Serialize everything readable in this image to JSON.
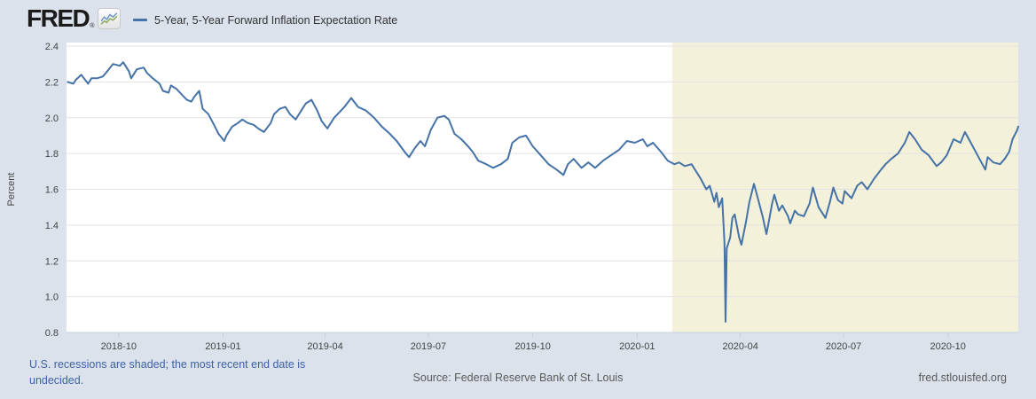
{
  "header": {
    "brand": "FRED",
    "registered_mark": "®",
    "legend": {
      "label": "5-Year, 5-Year Forward Inflation Expectation Rate"
    }
  },
  "footer": {
    "recession_note": "U.S. recessions are shaded; the most recent end date is undecided.",
    "source": "Source: Federal Reserve Bank of St. Louis",
    "site": "fred.stlouisfed.org"
  },
  "colors": {
    "page_background": "#dbe2ec",
    "plot_background": "#ffffff",
    "recession_shading": "#f3f1da",
    "gridline": "#e2e2e2",
    "axis_line": "#c5cfdd",
    "axis_text": "#444444",
    "series_line": "#4572a7",
    "note_link": "#3d62a5",
    "muted_text": "#5a5a5a",
    "logo_icon_blue": "#6b93c4",
    "logo_icon_green": "#86a757"
  },
  "chart_data": {
    "type": "line",
    "title": "5-Year, 5-Year Forward Inflation Expectation Rate",
    "ylabel": "Percent",
    "ylim": [
      0.8,
      2.4
    ],
    "y_ticks": [
      0.8,
      1.0,
      1.2,
      1.4,
      1.6,
      1.8,
      2.0,
      2.2,
      2.4
    ],
    "x_ticks": [
      {
        "label": "2018-10",
        "date": "2018-10-01"
      },
      {
        "label": "2019-01",
        "date": "2019-01-01"
      },
      {
        "label": "2019-04",
        "date": "2019-04-01"
      },
      {
        "label": "2019-07",
        "date": "2019-07-01"
      },
      {
        "label": "2019-10",
        "date": "2019-10-01"
      },
      {
        "label": "2020-01",
        "date": "2020-01-01"
      },
      {
        "label": "2020-04",
        "date": "2020-04-01"
      },
      {
        "label": "2020-07",
        "date": "2020-07-01"
      },
      {
        "label": "2020-10",
        "date": "2020-10-01"
      }
    ],
    "x_range": [
      "2018-08-16",
      "2020-12-02"
    ],
    "grid": true,
    "legend_position": "top",
    "recession_shading": {
      "start": "2020-02-01",
      "end": "2020-12-02"
    },
    "series": [
      {
        "name": "5-Year, 5-Year Forward Inflation Expectation Rate",
        "color": "#4572a7",
        "points": [
          [
            "2018-08-17",
            2.2
          ],
          [
            "2018-08-22",
            2.19
          ],
          [
            "2018-08-24",
            2.21
          ],
          [
            "2018-08-29",
            2.24
          ],
          [
            "2018-09-04",
            2.19
          ],
          [
            "2018-09-07",
            2.22
          ],
          [
            "2018-09-12",
            2.22
          ],
          [
            "2018-09-17",
            2.23
          ],
          [
            "2018-09-21",
            2.26
          ],
          [
            "2018-09-26",
            2.3
          ],
          [
            "2018-10-02",
            2.29
          ],
          [
            "2018-10-05",
            2.31
          ],
          [
            "2018-10-10",
            2.26
          ],
          [
            "2018-10-12",
            2.22
          ],
          [
            "2018-10-17",
            2.27
          ],
          [
            "2018-10-23",
            2.28
          ],
          [
            "2018-10-26",
            2.25
          ],
          [
            "2018-10-31",
            2.22
          ],
          [
            "2018-11-06",
            2.19
          ],
          [
            "2018-11-09",
            2.15
          ],
          [
            "2018-11-14",
            2.14
          ],
          [
            "2018-11-16",
            2.18
          ],
          [
            "2018-11-21",
            2.16
          ],
          [
            "2018-11-27",
            2.12
          ],
          [
            "2018-11-30",
            2.1
          ],
          [
            "2018-12-04",
            2.09
          ],
          [
            "2018-12-07",
            2.12
          ],
          [
            "2018-12-11",
            2.15
          ],
          [
            "2018-12-14",
            2.05
          ],
          [
            "2018-12-19",
            2.02
          ],
          [
            "2018-12-24",
            1.96
          ],
          [
            "2018-12-28",
            1.91
          ],
          [
            "2019-01-02",
            1.87
          ],
          [
            "2019-01-04",
            1.9
          ],
          [
            "2019-01-09",
            1.95
          ],
          [
            "2019-01-14",
            1.97
          ],
          [
            "2019-01-18",
            1.99
          ],
          [
            "2019-01-23",
            1.97
          ],
          [
            "2019-01-28",
            1.96
          ],
          [
            "2019-02-01",
            1.94
          ],
          [
            "2019-02-06",
            1.92
          ],
          [
            "2019-02-12",
            1.97
          ],
          [
            "2019-02-15",
            2.02
          ],
          [
            "2019-02-20",
            2.05
          ],
          [
            "2019-02-25",
            2.06
          ],
          [
            "2019-03-01",
            2.02
          ],
          [
            "2019-03-06",
            1.99
          ],
          [
            "2019-03-11",
            2.04
          ],
          [
            "2019-03-15",
            2.08
          ],
          [
            "2019-03-20",
            2.1
          ],
          [
            "2019-03-25",
            2.04
          ],
          [
            "2019-03-29",
            1.98
          ],
          [
            "2019-04-03",
            1.94
          ],
          [
            "2019-04-09",
            2.0
          ],
          [
            "2019-04-15",
            2.04
          ],
          [
            "2019-04-18",
            2.06
          ],
          [
            "2019-04-24",
            2.11
          ],
          [
            "2019-04-30",
            2.06
          ],
          [
            "2019-05-07",
            2.04
          ],
          [
            "2019-05-14",
            2.0
          ],
          [
            "2019-05-21",
            1.95
          ],
          [
            "2019-05-28",
            1.91
          ],
          [
            "2019-06-03",
            1.87
          ],
          [
            "2019-06-10",
            1.81
          ],
          [
            "2019-06-14",
            1.78
          ],
          [
            "2019-06-19",
            1.83
          ],
          [
            "2019-06-24",
            1.87
          ],
          [
            "2019-06-28",
            1.84
          ],
          [
            "2019-07-03",
            1.93
          ],
          [
            "2019-07-09",
            2.0
          ],
          [
            "2019-07-15",
            2.01
          ],
          [
            "2019-07-19",
            1.99
          ],
          [
            "2019-07-24",
            1.91
          ],
          [
            "2019-07-30",
            1.88
          ],
          [
            "2019-08-05",
            1.84
          ],
          [
            "2019-08-09",
            1.81
          ],
          [
            "2019-08-14",
            1.76
          ],
          [
            "2019-08-21",
            1.74
          ],
          [
            "2019-08-27",
            1.72
          ],
          [
            "2019-09-03",
            1.74
          ],
          [
            "2019-09-09",
            1.77
          ],
          [
            "2019-09-13",
            1.86
          ],
          [
            "2019-09-19",
            1.89
          ],
          [
            "2019-09-25",
            1.9
          ],
          [
            "2019-10-01",
            1.84
          ],
          [
            "2019-10-08",
            1.79
          ],
          [
            "2019-10-15",
            1.74
          ],
          [
            "2019-10-22",
            1.71
          ],
          [
            "2019-10-28",
            1.68
          ],
          [
            "2019-11-01",
            1.74
          ],
          [
            "2019-11-06",
            1.77
          ],
          [
            "2019-11-13",
            1.72
          ],
          [
            "2019-11-19",
            1.75
          ],
          [
            "2019-11-25",
            1.72
          ],
          [
            "2019-12-02",
            1.76
          ],
          [
            "2019-12-09",
            1.79
          ],
          [
            "2019-12-16",
            1.82
          ],
          [
            "2019-12-23",
            1.87
          ],
          [
            "2019-12-30",
            1.86
          ],
          [
            "2020-01-06",
            1.88
          ],
          [
            "2020-01-10",
            1.84
          ],
          [
            "2020-01-15",
            1.86
          ],
          [
            "2020-01-22",
            1.81
          ],
          [
            "2020-01-28",
            1.76
          ],
          [
            "2020-02-03",
            1.74
          ],
          [
            "2020-02-07",
            1.75
          ],
          [
            "2020-02-12",
            1.73
          ],
          [
            "2020-02-18",
            1.74
          ],
          [
            "2020-02-21",
            1.71
          ],
          [
            "2020-02-26",
            1.66
          ],
          [
            "2020-03-02",
            1.6
          ],
          [
            "2020-03-05",
            1.62
          ],
          [
            "2020-03-09",
            1.53
          ],
          [
            "2020-03-11",
            1.58
          ],
          [
            "2020-03-13",
            1.5
          ],
          [
            "2020-03-16",
            1.55
          ],
          [
            "2020-03-18",
            1.3
          ],
          [
            "2020-03-19",
            0.86
          ],
          [
            "2020-03-20",
            1.27
          ],
          [
            "2020-03-23",
            1.33
          ],
          [
            "2020-03-25",
            1.44
          ],
          [
            "2020-03-27",
            1.46
          ],
          [
            "2020-03-31",
            1.33
          ],
          [
            "2020-04-02",
            1.29
          ],
          [
            "2020-04-06",
            1.42
          ],
          [
            "2020-04-09",
            1.53
          ],
          [
            "2020-04-13",
            1.63
          ],
          [
            "2020-04-16",
            1.56
          ],
          [
            "2020-04-21",
            1.44
          ],
          [
            "2020-04-24",
            1.35
          ],
          [
            "2020-04-27",
            1.45
          ],
          [
            "2020-04-29",
            1.52
          ],
          [
            "2020-05-01",
            1.57
          ],
          [
            "2020-05-05",
            1.48
          ],
          [
            "2020-05-08",
            1.51
          ],
          [
            "2020-05-13",
            1.45
          ],
          [
            "2020-05-15",
            1.41
          ],
          [
            "2020-05-19",
            1.48
          ],
          [
            "2020-05-22",
            1.46
          ],
          [
            "2020-05-27",
            1.45
          ],
          [
            "2020-06-01",
            1.52
          ],
          [
            "2020-06-04",
            1.61
          ],
          [
            "2020-06-09",
            1.5
          ],
          [
            "2020-06-15",
            1.44
          ],
          [
            "2020-06-19",
            1.53
          ],
          [
            "2020-06-22",
            1.61
          ],
          [
            "2020-06-26",
            1.54
          ],
          [
            "2020-06-30",
            1.52
          ],
          [
            "2020-07-02",
            1.59
          ],
          [
            "2020-07-08",
            1.55
          ],
          [
            "2020-07-13",
            1.62
          ],
          [
            "2020-07-17",
            1.64
          ],
          [
            "2020-07-22",
            1.6
          ],
          [
            "2020-07-28",
            1.66
          ],
          [
            "2020-08-03",
            1.71
          ],
          [
            "2020-08-07",
            1.74
          ],
          [
            "2020-08-12",
            1.77
          ],
          [
            "2020-08-18",
            1.8
          ],
          [
            "2020-08-24",
            1.86
          ],
          [
            "2020-08-28",
            1.92
          ],
          [
            "2020-09-02",
            1.88
          ],
          [
            "2020-09-08",
            1.82
          ],
          [
            "2020-09-14",
            1.79
          ],
          [
            "2020-09-21",
            1.73
          ],
          [
            "2020-09-25",
            1.75
          ],
          [
            "2020-09-30",
            1.79
          ],
          [
            "2020-10-06",
            1.88
          ],
          [
            "2020-10-12",
            1.86
          ],
          [
            "2020-10-16",
            1.92
          ],
          [
            "2020-10-22",
            1.85
          ],
          [
            "2020-10-28",
            1.78
          ],
          [
            "2020-11-03",
            1.71
          ],
          [
            "2020-11-05",
            1.78
          ],
          [
            "2020-11-10",
            1.75
          ],
          [
            "2020-11-16",
            1.74
          ],
          [
            "2020-11-20",
            1.77
          ],
          [
            "2020-11-24",
            1.81
          ],
          [
            "2020-11-27",
            1.88
          ],
          [
            "2020-12-01",
            1.93
          ],
          [
            "2020-12-02",
            1.95
          ]
        ]
      }
    ]
  }
}
